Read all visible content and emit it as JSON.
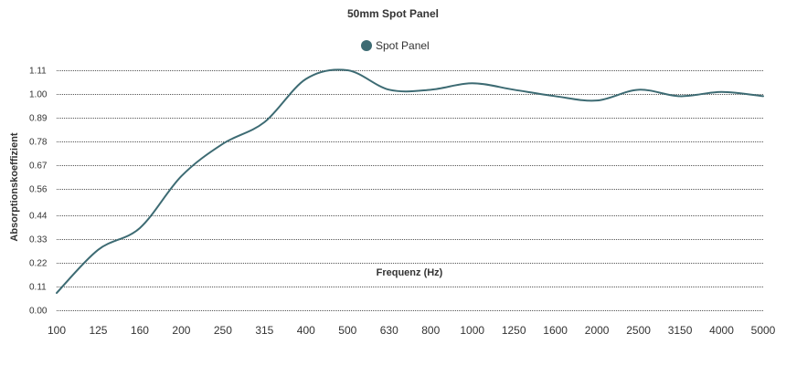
{
  "chart_data": {
    "type": "line",
    "title": "50mm Spot Panel",
    "xlabel": "Frequenz (Hz)",
    "ylabel": "Absorptionskoeffizient",
    "categories": [
      "100",
      "125",
      "160",
      "200",
      "250",
      "315",
      "400",
      "500",
      "630",
      "800",
      "1000",
      "1250",
      "1600",
      "2000",
      "2500",
      "3150",
      "4000",
      "5000"
    ],
    "y_ticks": [
      "0.00",
      "0.11",
      "0.22",
      "0.33",
      "0.44",
      "0.56",
      "0.67",
      "0.78",
      "0.89",
      "1.00",
      "1.11"
    ],
    "ylim": [
      0,
      1.11
    ],
    "grid": true,
    "legend_position": "top-center",
    "colors": {
      "series": "#3d6b73"
    },
    "series": [
      {
        "name": "Spot Panel",
        "values": [
          0.08,
          0.28,
          0.38,
          0.62,
          0.77,
          0.87,
          1.07,
          1.11,
          1.02,
          1.02,
          1.05,
          1.02,
          0.99,
          0.97,
          1.02,
          0.99,
          1.01,
          0.99
        ]
      }
    ]
  }
}
